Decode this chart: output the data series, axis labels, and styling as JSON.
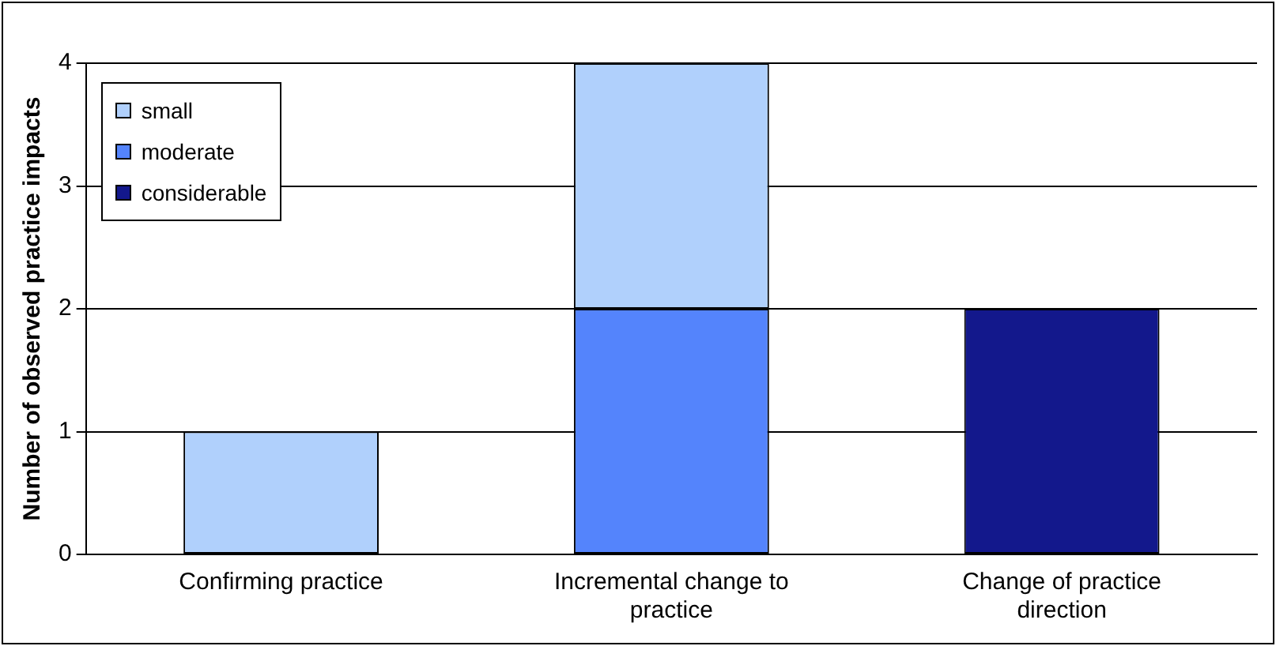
{
  "chart_data": {
    "type": "bar",
    "stacked": true,
    "ylabel": "Number of observed practice impacts",
    "categories": [
      "Confirming practice",
      "Incremental change to practice",
      "Change of practice direction"
    ],
    "series": [
      {
        "name": "considerable",
        "color": "#13188c",
        "values": [
          null,
          null,
          2
        ]
      },
      {
        "name": "moderate",
        "color": "#5484fc",
        "values": [
          null,
          2,
          null
        ]
      },
      {
        "name": "small",
        "color": "#b0d0fc",
        "values": [
          1,
          2,
          null
        ]
      }
    ],
    "ylim": [
      0,
      4
    ],
    "yticks": [
      0,
      1,
      2,
      3,
      4
    ],
    "grid": "y",
    "legend": "top left"
  }
}
